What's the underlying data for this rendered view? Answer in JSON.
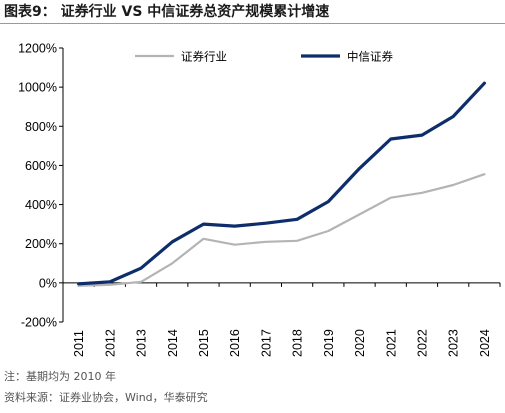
{
  "title": "图表9：  证券行业 VS 中信证券总资产规模累计增速",
  "notes": {
    "note": "注：基期均为 2010 年",
    "source": "资料来源：证券业协会，Wind，华泰研究"
  },
  "chart_data": {
    "type": "line",
    "title": "图表9：  证券行业 VS 中信证券总资产规模累计增速",
    "x": [
      "2011",
      "2012",
      "2013",
      "2014",
      "2015",
      "2016",
      "2017",
      "2018",
      "2019",
      "2020",
      "2021",
      "2022",
      "2023",
      "2024"
    ],
    "yticks": [
      "-200%",
      "0%",
      "200%",
      "400%",
      "600%",
      "800%",
      "1000%",
      "1200%"
    ],
    "ylim": [
      -200,
      1200
    ],
    "yunit": "%",
    "grid": false,
    "legend_position": "top",
    "series": [
      {
        "name": "证券行业",
        "color": "#b4b4b4",
        "values": [
          -15,
          -10,
          5,
          100,
          225,
          195,
          210,
          215,
          265,
          350,
          435,
          460,
          500,
          555
        ]
      },
      {
        "name": "中信证券",
        "color": "#0e2e6b",
        "values": [
          -5,
          5,
          75,
          210,
          300,
          290,
          305,
          325,
          415,
          585,
          735,
          755,
          850,
          1020
        ]
      }
    ]
  }
}
